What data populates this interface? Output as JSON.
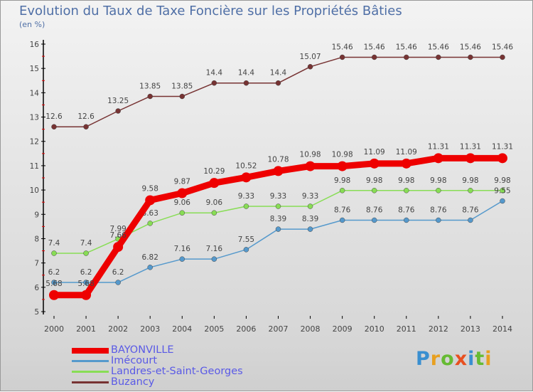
{
  "title": "Evolution du Taux de Taxe Foncière sur les Propriétés Bâties",
  "unit": "(en %)",
  "logo": "Proxiti",
  "chart_data": {
    "type": "line",
    "title": "Evolution du Taux de Taxe Foncière sur les Propriétés Bâties",
    "ylabel": "(en %)",
    "xlabel": "",
    "ylim": [
      5,
      16
    ],
    "yticks": [
      5,
      6,
      7,
      8,
      9,
      10,
      11,
      12,
      13,
      14,
      15,
      16
    ],
    "x": [
      2000,
      2001,
      2002,
      2003,
      2004,
      2005,
      2006,
      2007,
      2008,
      2009,
      2010,
      2011,
      2012,
      2013,
      2014
    ],
    "legend": "bottom-left",
    "series": [
      {
        "name": "BAYONVILLE",
        "color": "#ee0000",
        "values": [
          5.68,
          5.68,
          7.66,
          9.58,
          9.87,
          10.29,
          10.52,
          10.78,
          10.98,
          10.98,
          11.09,
          11.09,
          11.31,
          11.31,
          11.31
        ]
      },
      {
        "name": "Imécourt",
        "color": "#5599cc",
        "values": [
          6.2,
          6.2,
          6.2,
          6.82,
          7.16,
          7.16,
          7.55,
          8.39,
          8.39,
          8.76,
          8.76,
          8.76,
          8.76,
          8.76,
          9.55
        ]
      },
      {
        "name": "Landres-et-Saint-Georges",
        "color": "#88dd55",
        "values": [
          7.4,
          7.4,
          7.99,
          8.63,
          9.06,
          9.06,
          9.33,
          9.33,
          9.33,
          9.98,
          9.98,
          9.98,
          9.98,
          9.98,
          9.98
        ]
      },
      {
        "name": "Buzancy",
        "color": "#773333",
        "values": [
          12.6,
          12.6,
          13.25,
          13.85,
          13.85,
          14.4,
          14.4,
          14.4,
          15.07,
          15.46,
          15.46,
          15.46,
          15.46,
          15.46,
          15.46
        ]
      }
    ]
  }
}
